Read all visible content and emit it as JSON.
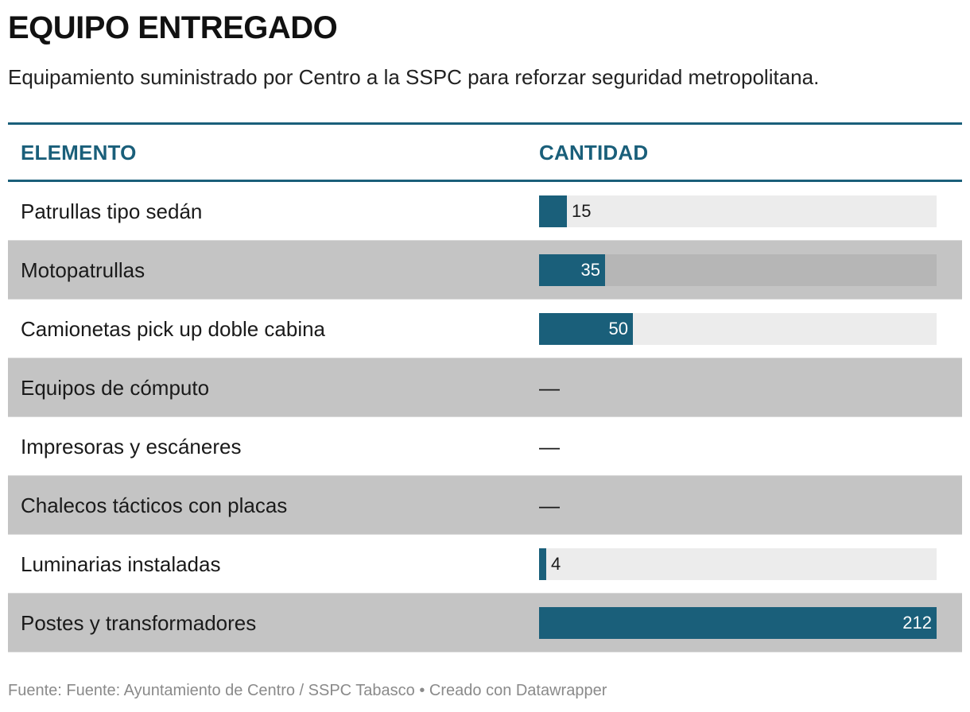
{
  "title": "EQUIPO ENTREGADO",
  "subtitle": "Equipamiento suministrado por Centro a la SSPC para reforzar seguridad metropolitana.",
  "columns": {
    "element": "ELEMENTO",
    "quantity": "CANTIDAD"
  },
  "missing_symbol": "—",
  "footer": "Fuente: Fuente: Ayuntamiento de Centro / SSPC Tabasco • Creado con Datawrapper",
  "colors": {
    "bar": "#1a5f7a",
    "header": "#1a5f7a",
    "alt_row": "#c4c4c4"
  },
  "chart_data": {
    "type": "table",
    "title": "EQUIPO ENTREGADO",
    "max": 212,
    "categories": [
      "Patrullas tipo sedán",
      "Motopatrullas",
      "Camionetas pick up doble cabina",
      "Equipos de cómputo",
      "Impresoras y escáneres",
      "Chalecos tácticos con placas",
      "Luminarias instaladas",
      "Postes y transformadores"
    ],
    "values": [
      15,
      35,
      50,
      null,
      null,
      null,
      4,
      212
    ]
  }
}
